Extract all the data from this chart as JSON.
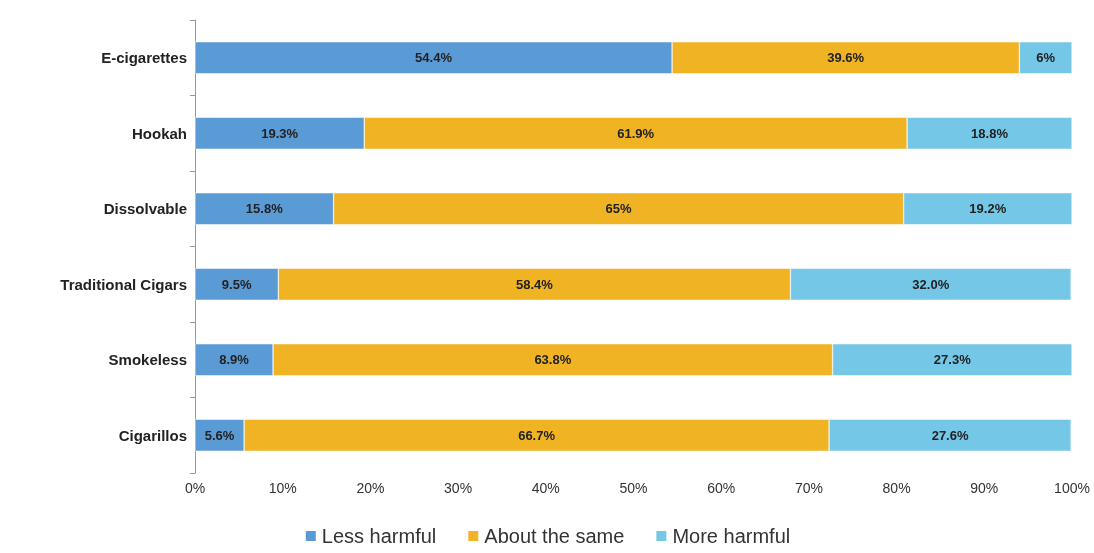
{
  "chart_data": {
    "type": "bar",
    "orientation": "horizontal",
    "stacked": true,
    "categories": [
      "E-cigarettes",
      "Hookah",
      "Dissolvable",
      "Traditional Cigars",
      "Smokeless",
      "Cigarillos"
    ],
    "series": [
      {
        "name": "Less harmful",
        "color": "#5b9bd5",
        "values": [
          54.4,
          19.3,
          15.8,
          9.5,
          8.9,
          5.6
        ],
        "value_labels": [
          "54.4%",
          "19.3%",
          "15.8%",
          "9.5%",
          "8.9%",
          "5.6%"
        ]
      },
      {
        "name": "About the same",
        "color": "#f0b323",
        "values": [
          39.6,
          61.9,
          65,
          58.4,
          63.8,
          66.7
        ],
        "value_labels": [
          "39.6%",
          "61.9%",
          "65%",
          "58.4%",
          "63.8%",
          "66.7%"
        ]
      },
      {
        "name": "More harmful",
        "color": "#75c7e8",
        "values": [
          6,
          18.8,
          19.2,
          32.0,
          27.3,
          27.6
        ],
        "value_labels": [
          "6%",
          "18.8%",
          "19.2%",
          "32.0%",
          "27.3%",
          "27.6%"
        ]
      }
    ],
    "xlim": [
      0,
      100
    ],
    "xticks": [
      {
        "value": 0,
        "label": "0%"
      },
      {
        "value": 10,
        "label": "10%"
      },
      {
        "value": 20,
        "label": "20%"
      },
      {
        "value": 30,
        "label": "30%"
      },
      {
        "value": 40,
        "label": "40%"
      },
      {
        "value": 50,
        "label": "50%"
      },
      {
        "value": 60,
        "label": "60%"
      },
      {
        "value": 70,
        "label": "70%"
      },
      {
        "value": 80,
        "label": "80%"
      },
      {
        "value": 90,
        "label": "90%"
      },
      {
        "value": 100,
        "label": "100%"
      }
    ],
    "grid": false,
    "legend": "bottom"
  }
}
